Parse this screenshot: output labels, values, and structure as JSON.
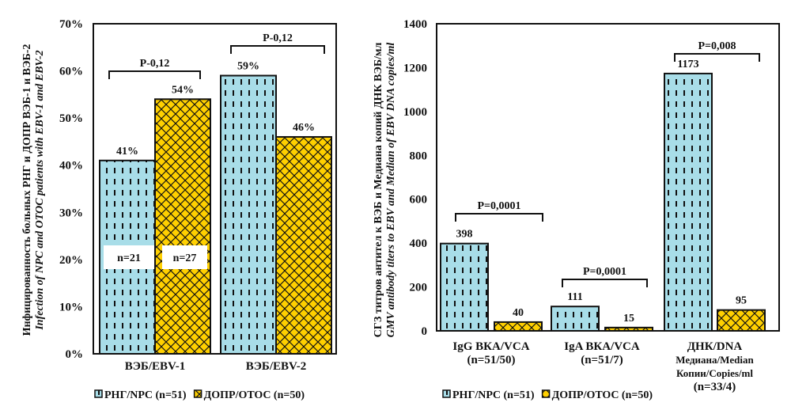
{
  "colors": {
    "npc": "#a8dde8",
    "otoc": "#ffd000"
  },
  "chart_data": [
    {
      "type": "bar",
      "ylabel": "Инфицированность больных РНГ и ДОПР ВЭБ-1 и ВЭБ-2",
      "ylabel_en": "Infection of NPC and OTOC patients with EBV-1 and EBV-2",
      "ylim": [
        0,
        70
      ],
      "yticks": [
        "0%",
        "10%",
        "20%",
        "30%",
        "40%",
        "50%",
        "60%",
        "70%"
      ],
      "grid": false,
      "categories": [
        "ВЭБ/EBV-1",
        "ВЭБ/EBV-2"
      ],
      "series": [
        {
          "name": "РНГ/NPC (n=51)",
          "values": [
            41,
            59
          ],
          "labels": [
            "41%",
            "59%"
          ]
        },
        {
          "name": "ДОПР/OTOC (n=50)",
          "values": [
            54,
            46
          ],
          "labels": [
            "54%",
            "46%"
          ]
        }
      ],
      "annotations": {
        "p_values": [
          "P-0,12",
          "P-0,12"
        ],
        "n_labels": [
          "n=21",
          "n=27"
        ]
      },
      "legend": "bottom"
    },
    {
      "type": "bar",
      "ylabel": "СГЗ титров антител к ВЭБ и Медиана копий ДНК ВЭБ/мл",
      "ylabel_en": "GMV antibody titers to EBV and Median of EBV DNA copies/ml",
      "ylim": [
        0,
        1400
      ],
      "yticks": [
        "0",
        "200",
        "400",
        "600",
        "800",
        "1000",
        "1200",
        "1400"
      ],
      "grid": false,
      "categories": [
        [
          "IgG ВКА/VCA",
          "(n=51/50)"
        ],
        [
          "IgA ВКА/VCA",
          "(n=51/7)"
        ],
        [
          "ДНК/DNA",
          "Медиана/Median",
          "Копии/Copies/ml",
          "(n=33/4)"
        ]
      ],
      "series": [
        {
          "name": "РНГ/NPC (n=51)",
          "values": [
            398,
            111,
            1173
          ],
          "labels": [
            "398",
            "111",
            "1173"
          ]
        },
        {
          "name": "ДОПР/OTOC (n=50)",
          "values": [
            40,
            15,
            95
          ],
          "labels": [
            "40",
            "15",
            "95"
          ]
        }
      ],
      "annotations": {
        "p_values": [
          "P=0,0001",
          "P=0,0001",
          "P=0,008"
        ]
      },
      "legend": "bottom"
    }
  ]
}
